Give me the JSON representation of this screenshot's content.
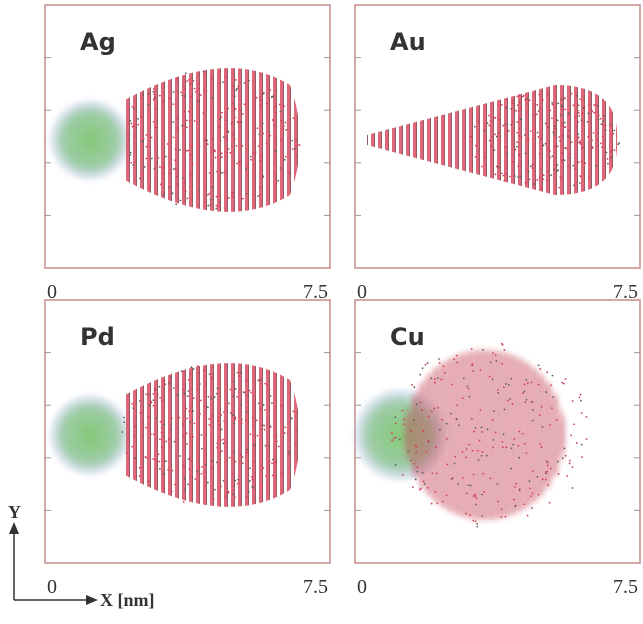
{
  "panels": [
    {
      "label": "Ag",
      "x_start": "0",
      "x_end": "7.5"
    },
    {
      "label": "Au",
      "x_start": "0",
      "x_end": "7.5"
    },
    {
      "label": "Pd",
      "x_start": "0",
      "x_end": "7.5"
    },
    {
      "label": "Cu",
      "x_start": "0",
      "x_end": "7.5"
    }
  ],
  "axes": {
    "y_label": "Y",
    "x_label": "X [nm]"
  }
}
